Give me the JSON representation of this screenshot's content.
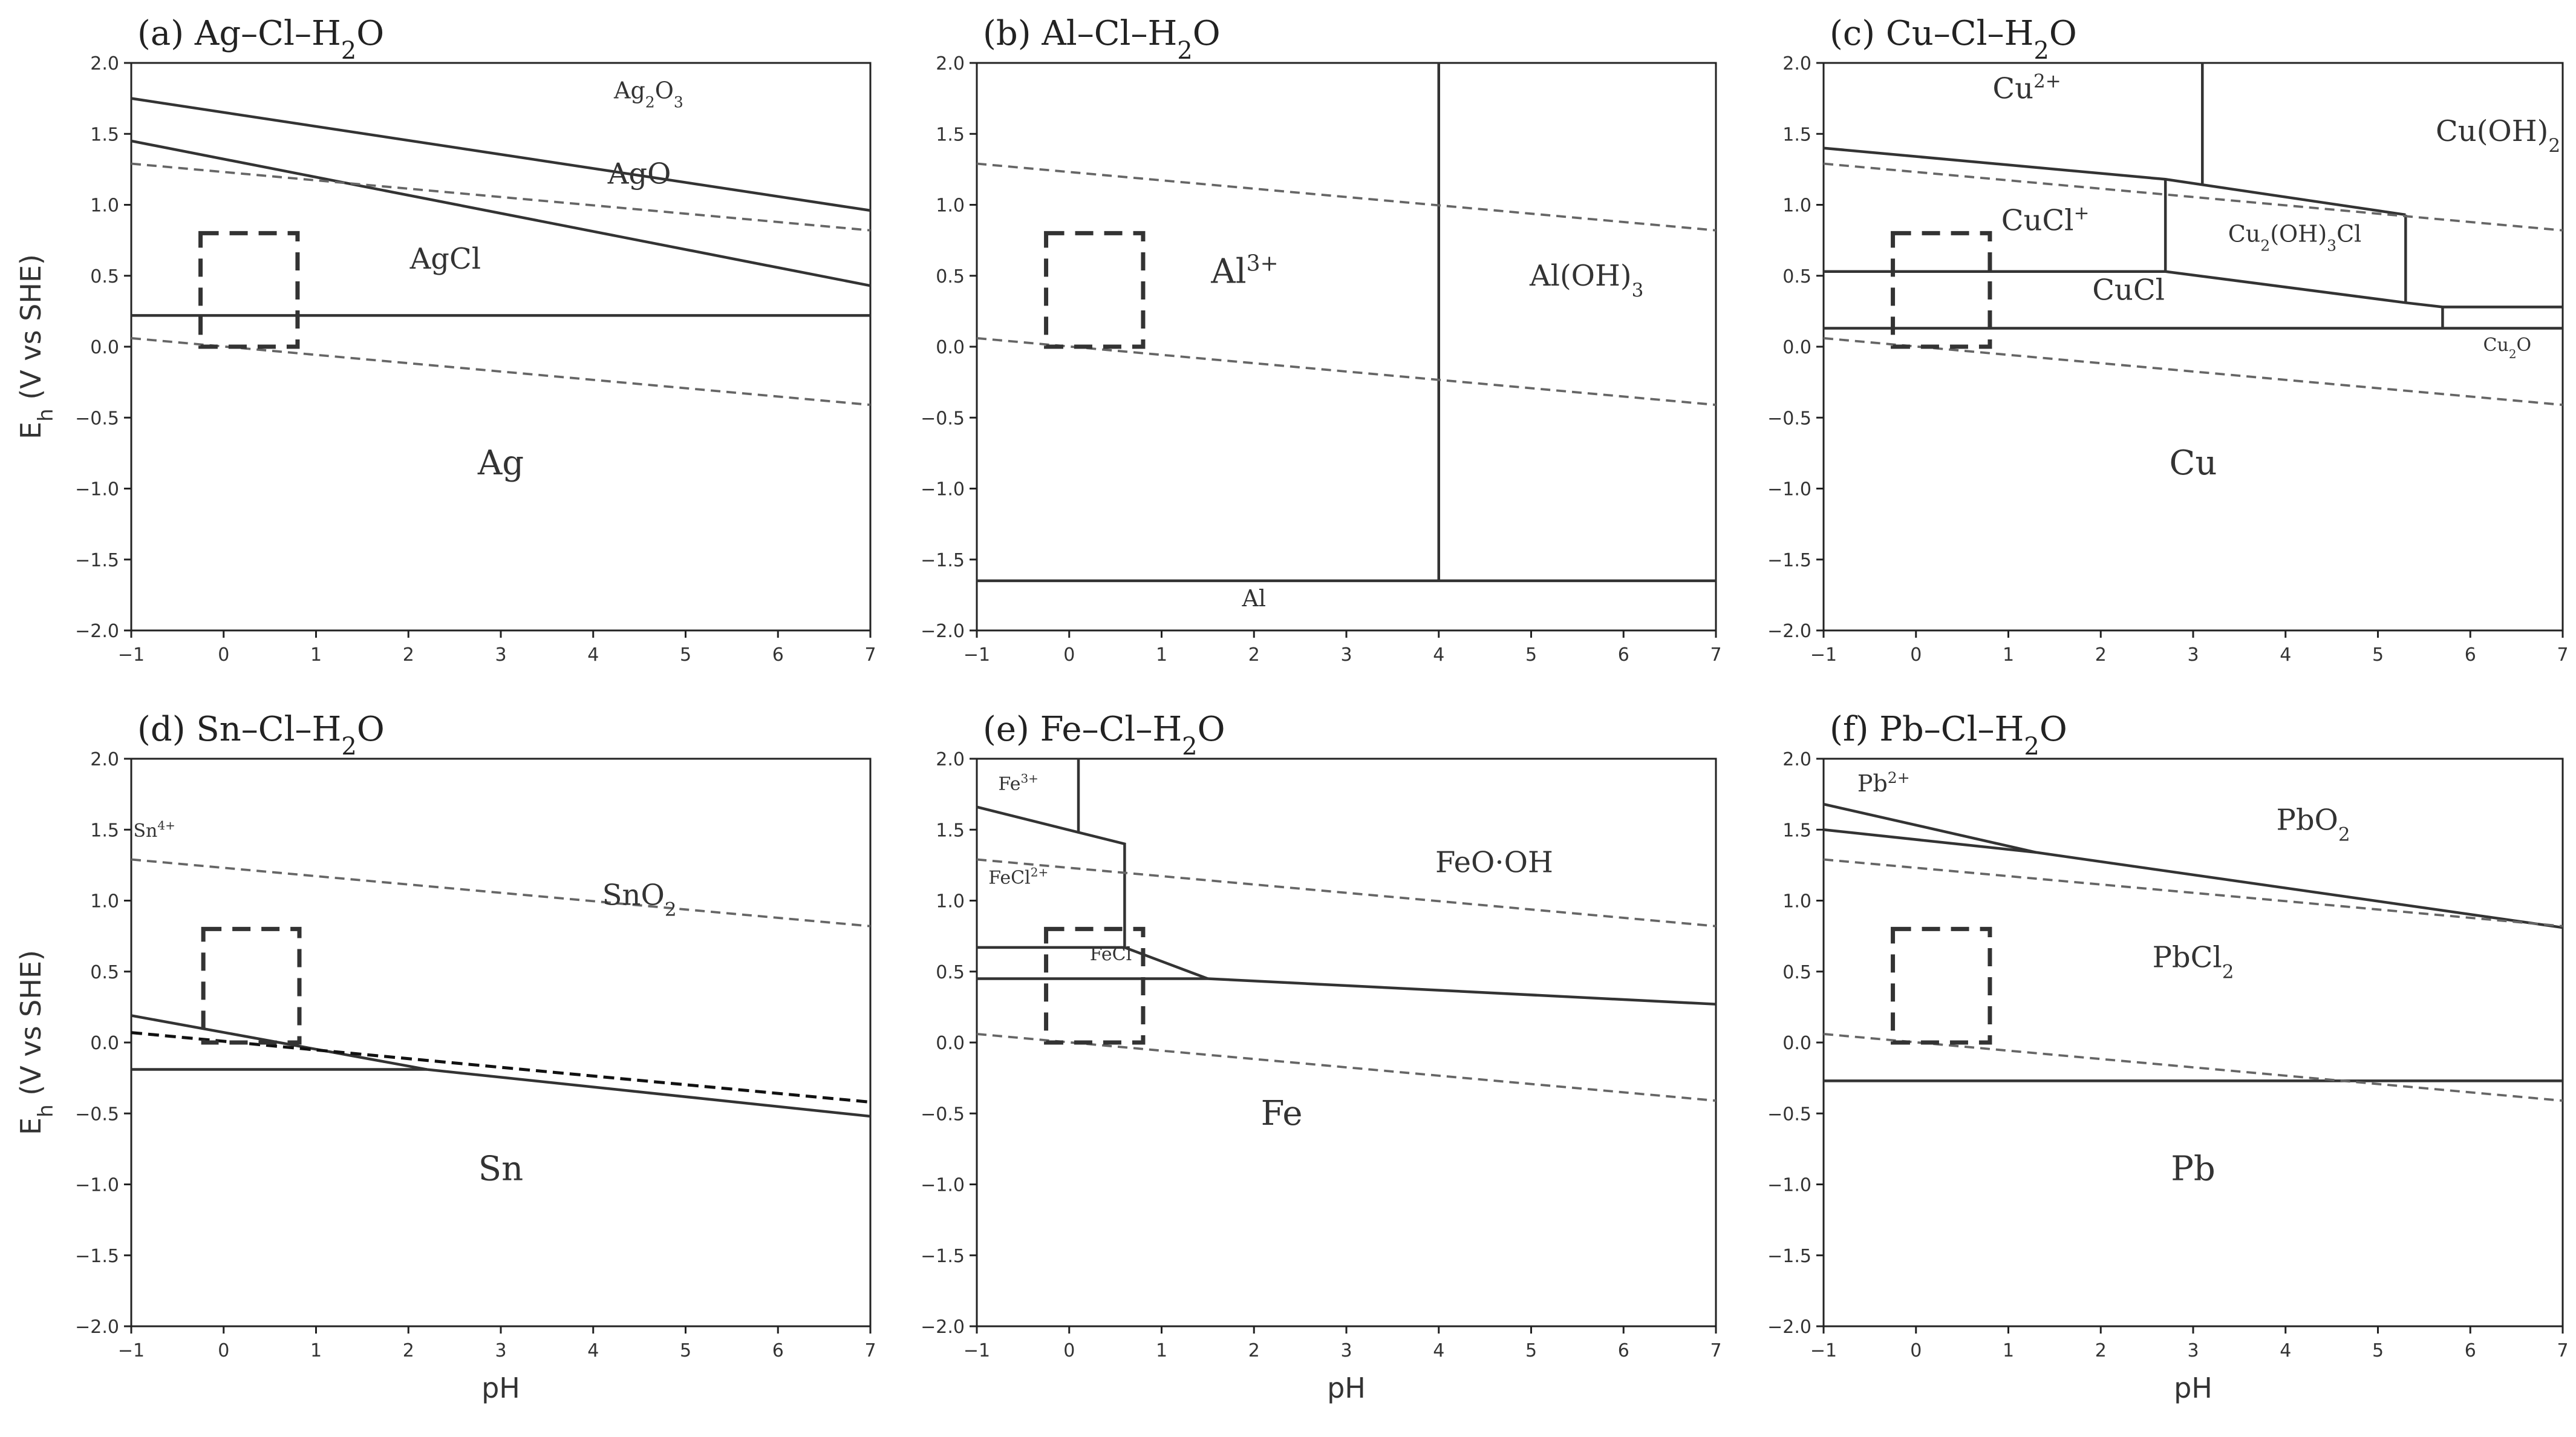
{
  "figure": {
    "xlabel": "pH",
    "ylabel": "Eh (V vs SHE)"
  },
  "chart_data": [
    {
      "type": "line",
      "panel": "(a)",
      "title": "Ag–Cl–H2O",
      "xlabel": "",
      "ylabel": "Eh (V vs SHE)",
      "xlim": [
        -1,
        7
      ],
      "ylim": [
        -2.0,
        2.0
      ],
      "xticks": [
        -1,
        0,
        1,
        2,
        3,
        4,
        5,
        6,
        7
      ],
      "yticks": [
        -2.0,
        -1.5,
        -1.0,
        -0.5,
        0.0,
        0.5,
        1.0,
        1.5,
        2.0
      ],
      "lines": [
        {
          "style": "solid",
          "points": [
            [
              -1,
              1.75
            ],
            [
              7,
              0.96
            ]
          ]
        },
        {
          "style": "solid",
          "points": [
            [
              -1,
              1.45
            ],
            [
              7,
              0.43
            ]
          ]
        },
        {
          "style": "solid",
          "points": [
            [
              -1,
              0.22
            ],
            [
              7,
              0.22
            ]
          ]
        },
        {
          "style": "water",
          "points": [
            [
              -1,
              1.29
            ],
            [
              7,
              0.82
            ]
          ]
        },
        {
          "style": "water",
          "points": [
            [
              -1,
              0.06
            ],
            [
              7,
              -0.41
            ]
          ]
        }
      ],
      "box": {
        "x": [
          -0.25,
          0.8
        ],
        "y": [
          0.0,
          0.8
        ]
      },
      "labels": [
        {
          "main": "Ag",
          "sub": "2",
          "mid": "O",
          "sub2": "3",
          "x": 4.6,
          "y": 1.75,
          "size": "s"
        },
        {
          "main": "AgO",
          "x": 4.5,
          "y": 1.15,
          "size": "m"
        },
        {
          "main": "AgCl",
          "x": 2.4,
          "y": 0.55,
          "size": "m"
        },
        {
          "main": "Ag",
          "x": 3.0,
          "y": -0.9,
          "size": "l"
        }
      ]
    },
    {
      "type": "line",
      "panel": "(b)",
      "title": "Al–Cl–H2O",
      "xlabel": "",
      "ylabel": "",
      "xlim": [
        -1,
        7
      ],
      "ylim": [
        -2.0,
        2.0
      ],
      "xticks": [
        -1,
        0,
        1,
        2,
        3,
        4,
        5,
        6,
        7
      ],
      "yticks": [
        -2.0,
        -1.5,
        -1.0,
        -0.5,
        0.0,
        0.5,
        1.0,
        1.5,
        2.0
      ],
      "lines": [
        {
          "style": "solid",
          "points": [
            [
              4,
              2.0
            ],
            [
              4,
              -1.65
            ]
          ]
        },
        {
          "style": "solid",
          "points": [
            [
              -1,
              -1.65
            ],
            [
              7,
              -1.65
            ]
          ]
        },
        {
          "style": "water",
          "points": [
            [
              -1,
              1.29
            ],
            [
              7,
              0.82
            ]
          ]
        },
        {
          "style": "water",
          "points": [
            [
              -1,
              0.06
            ],
            [
              7,
              -0.41
            ]
          ]
        }
      ],
      "box": {
        "x": [
          -0.25,
          0.8
        ],
        "y": [
          0.0,
          0.8
        ]
      },
      "labels": [
        {
          "main": "Al",
          "sup": "3+",
          "x": 1.9,
          "y": 0.45,
          "size": "l"
        },
        {
          "main": "Al(OH)",
          "sub": "3",
          "x": 5.6,
          "y": 0.43,
          "size": "m"
        },
        {
          "main": "Al",
          "x": 2.0,
          "y": -1.83,
          "size": "s"
        }
      ]
    },
    {
      "type": "line",
      "panel": "(c)",
      "title": "Cu–Cl–H2O",
      "xlabel": "",
      "ylabel": "",
      "xlim": [
        -1,
        7
      ],
      "ylim": [
        -2.0,
        2.0
      ],
      "xticks": [
        -1,
        0,
        1,
        2,
        3,
        4,
        5,
        6,
        7
      ],
      "yticks": [
        -2.0,
        -1.5,
        -1.0,
        -0.5,
        0.0,
        0.5,
        1.0,
        1.5,
        2.0
      ],
      "lines": [
        {
          "style": "solid",
          "points": [
            [
              -1,
              1.4
            ],
            [
              2.7,
              1.18
            ],
            [
              5.3,
              0.93
            ]
          ]
        },
        {
          "style": "solid",
          "points": [
            [
              3.1,
              2.0
            ],
            [
              3.1,
              1.15
            ]
          ]
        },
        {
          "style": "solid",
          "points": [
            [
              2.7,
              1.18
            ],
            [
              2.7,
              0.53
            ]
          ]
        },
        {
          "style": "solid",
          "points": [
            [
              -1,
              0.53
            ],
            [
              2.7,
              0.53
            ],
            [
              5.3,
              0.31
            ],
            [
              5.7,
              0.28
            ],
            [
              7,
              0.28
            ]
          ]
        },
        {
          "style": "solid",
          "points": [
            [
              5.3,
              0.93
            ],
            [
              5.3,
              0.31
            ]
          ]
        },
        {
          "style": "solid",
          "points": [
            [
              5.7,
              0.28
            ],
            [
              5.7,
              0.13
            ]
          ]
        },
        {
          "style": "solid",
          "points": [
            [
              -1,
              0.13
            ],
            [
              7,
              0.13
            ]
          ]
        },
        {
          "style": "water",
          "points": [
            [
              -1,
              1.29
            ],
            [
              7,
              0.82
            ]
          ]
        },
        {
          "style": "water",
          "points": [
            [
              -1,
              0.06
            ],
            [
              7,
              -0.41
            ]
          ]
        }
      ],
      "box": {
        "x": [
          -0.25,
          0.8
        ],
        "y": [
          0.0,
          0.8
        ]
      },
      "labels": [
        {
          "main": "Cu",
          "sup": "2+",
          "x": 1.2,
          "y": 1.75,
          "size": "m"
        },
        {
          "main": "Cu(OH)",
          "sub": "2",
          "x": 6.3,
          "y": 1.45,
          "size": "m"
        },
        {
          "main": "CuCl",
          "sup": "+",
          "x": 1.4,
          "y": 0.82,
          "size": "m"
        },
        {
          "main": "Cu",
          "sub": "2",
          "mid": "(OH)",
          "sub2": "3",
          "tail": "Cl",
          "x": 4.1,
          "y": 0.74,
          "size": "s"
        },
        {
          "main": "CuCl",
          "x": 2.3,
          "y": 0.33,
          "size": "m"
        },
        {
          "main": "Cu",
          "sub": "2",
          "mid": "O",
          "x": 6.4,
          "y": -0.03,
          "size": "xs"
        },
        {
          "main": "Cu",
          "x": 3.0,
          "y": -0.9,
          "size": "l"
        }
      ]
    },
    {
      "type": "line",
      "panel": "(d)",
      "title": "Sn–Cl–H2O",
      "xlabel": "pH",
      "ylabel": "Eh (V vs SHE)",
      "xlim": [
        -1,
        7
      ],
      "ylim": [
        -2.0,
        2.0
      ],
      "xticks": [
        -1,
        0,
        1,
        2,
        3,
        4,
        5,
        6,
        7
      ],
      "yticks": [
        -2.0,
        -1.5,
        -1.0,
        -0.5,
        0.0,
        0.5,
        1.0,
        1.5,
        2.0
      ],
      "lines": [
        {
          "style": "solid",
          "points": [
            [
              -1,
              0.19
            ],
            [
              2.2,
              -0.19
            ],
            [
              7,
              -0.52
            ]
          ]
        },
        {
          "style": "solid",
          "points": [
            [
              -1,
              -0.19
            ],
            [
              2.2,
              -0.19
            ]
          ]
        },
        {
          "style": "dark",
          "points": [
            [
              -1,
              0.07
            ],
            [
              7,
              -0.42
            ]
          ]
        },
        {
          "style": "water",
          "points": [
            [
              -1,
              1.29
            ],
            [
              7,
              0.82
            ]
          ]
        }
      ],
      "box": {
        "x": [
          -0.22,
          0.82
        ],
        "y": [
          0.0,
          0.8
        ]
      },
      "labels": [
        {
          "main": "Sn",
          "sup": "4+",
          "x": -0.75,
          "y": 1.45,
          "size": "xs"
        },
        {
          "main": "SnO",
          "sub": "2",
          "x": 4.5,
          "y": 0.97,
          "size": "m"
        },
        {
          "main": "Sn",
          "x": 3.0,
          "y": -0.97,
          "size": "l"
        }
      ]
    },
    {
      "type": "line",
      "panel": "(e)",
      "title": "Fe–Cl–H2O",
      "xlabel": "pH",
      "ylabel": "",
      "xlim": [
        -1,
        7
      ],
      "ylim": [
        -2.0,
        2.0
      ],
      "xticks": [
        -1,
        0,
        1,
        2,
        3,
        4,
        5,
        6,
        7
      ],
      "yticks": [
        -2.0,
        -1.5,
        -1.0,
        -0.5,
        0.0,
        0.5,
        1.0,
        1.5,
        2.0
      ],
      "lines": [
        {
          "style": "solid",
          "points": [
            [
              0.1,
              2.0
            ],
            [
              0.1,
              1.48
            ]
          ]
        },
        {
          "style": "solid",
          "points": [
            [
              -1,
              1.66
            ],
            [
              0.6,
              1.4
            ],
            [
              0.6,
              0.67
            ]
          ]
        },
        {
          "style": "solid",
          "points": [
            [
              -1,
              0.67
            ],
            [
              0.6,
              0.67
            ],
            [
              1.5,
              0.45
            ]
          ]
        },
        {
          "style": "solid",
          "points": [
            [
              -1,
              0.45
            ],
            [
              1.5,
              0.45
            ],
            [
              7,
              0.27
            ]
          ]
        },
        {
          "style": "water",
          "points": [
            [
              -1,
              1.29
            ],
            [
              7,
              0.82
            ]
          ]
        },
        {
          "style": "water",
          "points": [
            [
              -1,
              0.06
            ],
            [
              7,
              -0.41
            ]
          ]
        }
      ],
      "box": {
        "x": [
          -0.25,
          0.8
        ],
        "y": [
          0.0,
          0.8
        ]
      },
      "labels": [
        {
          "main": "Fe",
          "sup": "3+",
          "x": -0.55,
          "y": 1.78,
          "size": "xs"
        },
        {
          "main": "FeCl",
          "sup": "2+",
          "x": -0.55,
          "y": 1.12,
          "size": "xs"
        },
        {
          "main": "FeCl",
          "x": 0.45,
          "y": 0.58,
          "size": "xs"
        },
        {
          "main": "FeO·OH",
          "x": 4.6,
          "y": 1.2,
          "size": "m"
        },
        {
          "main": "Fe",
          "x": 2.3,
          "y": -0.58,
          "size": "l"
        }
      ]
    },
    {
      "type": "line",
      "panel": "(f)",
      "title": "Pb–Cl–H2O",
      "xlabel": "pH",
      "ylabel": "",
      "xlim": [
        -1,
        7
      ],
      "ylim": [
        -2.0,
        2.0
      ],
      "xticks": [
        -1,
        0,
        1,
        2,
        3,
        4,
        5,
        6,
        7
      ],
      "yticks": [
        -2.0,
        -1.5,
        -1.0,
        -0.5,
        0.0,
        0.5,
        1.0,
        1.5,
        2.0
      ],
      "lines": [
        {
          "style": "solid",
          "points": [
            [
              -1,
              1.68
            ],
            [
              1.3,
              1.34
            ],
            [
              7,
              0.81
            ]
          ]
        },
        {
          "style": "solid",
          "points": [
            [
              -1,
              1.5
            ],
            [
              1.3,
              1.34
            ]
          ]
        },
        {
          "style": "solid",
          "points": [
            [
              -1,
              -0.27
            ],
            [
              7,
              -0.27
            ]
          ]
        },
        {
          "style": "water",
          "points": [
            [
              -1,
              1.29
            ],
            [
              7,
              0.82
            ]
          ]
        },
        {
          "style": "water",
          "points": [
            [
              -1,
              0.06
            ],
            [
              7,
              -0.41
            ]
          ]
        }
      ],
      "box": {
        "x": [
          -0.25,
          0.8
        ],
        "y": [
          0.0,
          0.8
        ]
      },
      "labels": [
        {
          "main": "Pb",
          "sup": "2+",
          "x": -0.35,
          "y": 1.77,
          "size": "s"
        },
        {
          "main": "PbO",
          "sub": "2",
          "x": 4.3,
          "y": 1.5,
          "size": "m"
        },
        {
          "main": "PbCl",
          "sub": "2",
          "x": 3.0,
          "y": 0.53,
          "size": "m"
        },
        {
          "main": "Pb",
          "x": 3.0,
          "y": -0.97,
          "size": "l"
        }
      ]
    }
  ]
}
